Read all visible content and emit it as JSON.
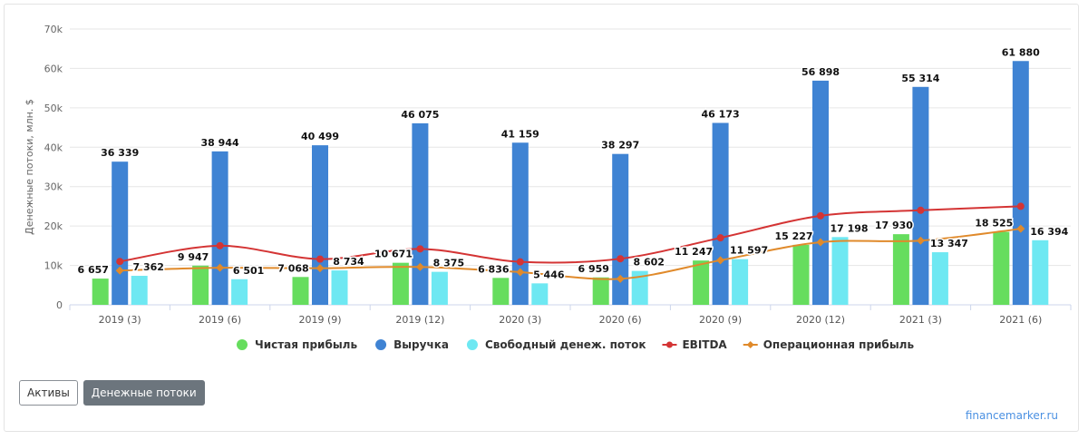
{
  "colors": {
    "net_profit": "#66dd5e",
    "revenue": "#3f83d3",
    "fcf": "#6ee8f2",
    "ebitda": "#d43434",
    "operating_profit": "#e08a2b"
  },
  "tabs": [
    {
      "label": "Активы",
      "active": false
    },
    {
      "label": "Денежные потоки",
      "active": true
    }
  ],
  "brand": "financemarker.ru",
  "chart_data": {
    "type": "bar",
    "ylabel": "Денежные потоки, млн. $",
    "ylim": [
      0,
      70000
    ],
    "yticks": [
      "0",
      "10k",
      "20k",
      "30k",
      "40k",
      "50k",
      "60k",
      "70k"
    ],
    "categories": [
      "2019 (3)",
      "2019 (6)",
      "2019 (9)",
      "2019 (12)",
      "2020 (3)",
      "2020 (6)",
      "2020 (9)",
      "2020 (12)",
      "2021 (3)",
      "2021 (6)"
    ],
    "legend_position": "bottom",
    "grid": true,
    "series": [
      {
        "name": "Чистая прибыль",
        "kind": "bar",
        "color_key": "net_profit",
        "values": [
          6657,
          9947,
          7068,
          10671,
          6836,
          6959,
          11247,
          15227,
          17930,
          18525
        ],
        "labels": [
          "6 657",
          "9 947",
          "7 068",
          "10 671",
          "6 836",
          "6 959",
          "11 247",
          "15 227",
          "17 930",
          "18 525"
        ]
      },
      {
        "name": "Выручка",
        "kind": "bar",
        "color_key": "revenue",
        "values": [
          36339,
          38944,
          40499,
          46075,
          41159,
          38297,
          46173,
          56898,
          55314,
          61880
        ],
        "labels": [
          "36 339",
          "38 944",
          "40 499",
          "46 075",
          "41 159",
          "38 297",
          "46 173",
          "56 898",
          "55 314",
          "61 880"
        ]
      },
      {
        "name": "Свободный денеж. поток",
        "kind": "bar",
        "color_key": "fcf",
        "values": [
          7362,
          6501,
          8734,
          8375,
          5446,
          8602,
          11597,
          17198,
          13347,
          16394
        ],
        "labels": [
          "7 362",
          "6 501",
          "8 734",
          "8 375",
          "5 446",
          "8 602",
          "11 597",
          "17 198",
          "13 347",
          "16 394"
        ]
      },
      {
        "name": "EBITDA",
        "kind": "line",
        "color_key": "ebitda",
        "values": [
          11000,
          15000,
          11600,
          14200,
          10900,
          11700,
          17000,
          22600,
          24000,
          25000
        ]
      },
      {
        "name": "Операционная прибыль",
        "kind": "line",
        "color_key": "operating_profit",
        "values": [
          8700,
          9400,
          9300,
          9600,
          8300,
          6600,
          11300,
          15900,
          16300,
          19300
        ]
      }
    ]
  }
}
